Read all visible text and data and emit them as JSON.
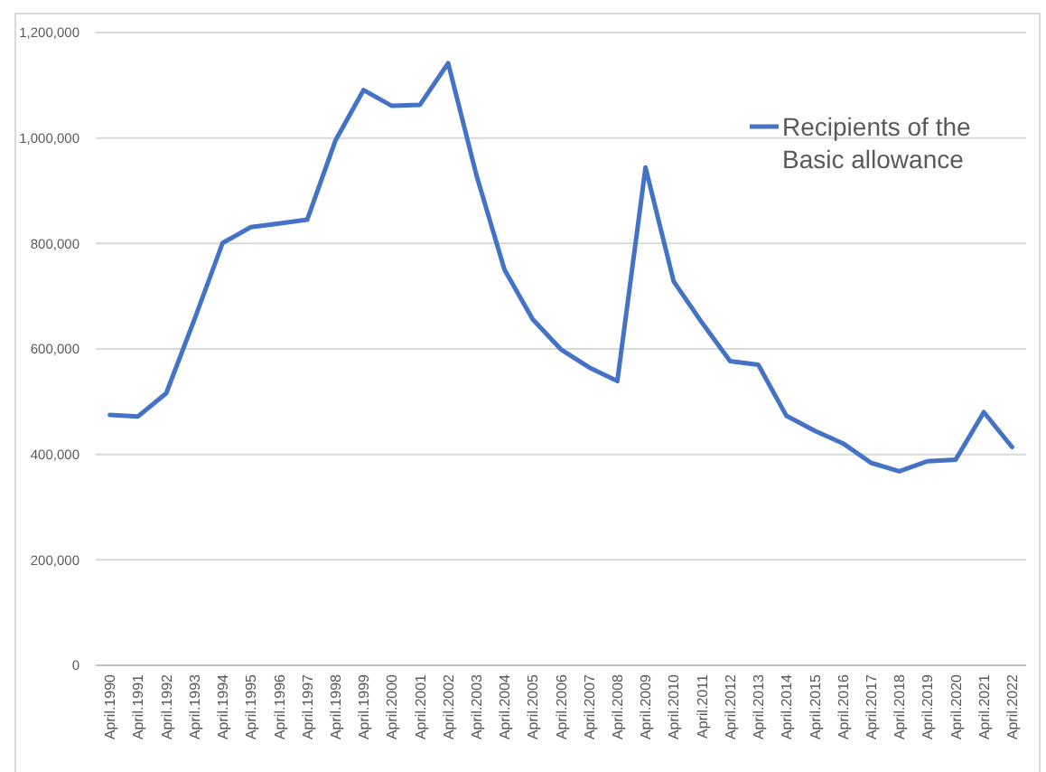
{
  "chart_data": {
    "type": "line",
    "categories": [
      "April.1990",
      "April.1991",
      "April.1992",
      "April.1993",
      "April.1994",
      "April.1995",
      "April.1996",
      "April.1997",
      "April.1998",
      "April.1999",
      "April.2000",
      "April.2001",
      "April.2002",
      "April.2003",
      "April.2004",
      "April.2005",
      "April.2006",
      "April.2007",
      "April.2008",
      "April.2009",
      "April.2010",
      "April.2011",
      "April.2012",
      "April.2013",
      "April.2014",
      "April.2015",
      "April.2016",
      "April.2017",
      "April.2018",
      "April.2019",
      "April.2020",
      "April.2021",
      "April.2022"
    ],
    "series": [
      {
        "name": "Recipients of the Basic allowance",
        "color": "#4472c4",
        "values": [
          475000,
          472000,
          516000,
          656000,
          801000,
          831000,
          838000,
          845000,
          995000,
          1091000,
          1061000,
          1063000,
          1142000,
          930000,
          750000,
          656000,
          599000,
          565000,
          539000,
          944000,
          728000,
          650000,
          577000,
          570000,
          473000,
          445000,
          421000,
          384000,
          368000,
          387000,
          390000,
          480000,
          414000
        ]
      }
    ],
    "ylim": [
      0,
      1200000
    ],
    "yticks": [
      {
        "value": 0,
        "label": "0"
      },
      {
        "value": 200000,
        "label": "200,000"
      },
      {
        "value": 400000,
        "label": "400,000"
      },
      {
        "value": 600000,
        "label": "600,000"
      },
      {
        "value": 800000,
        "label": "800,000"
      },
      {
        "value": 1000000,
        "label": "1,000,000"
      },
      {
        "value": 1200000,
        "label": "1,200,000"
      }
    ],
    "grid": "y",
    "legend": "top right",
    "marker": "none",
    "line_style": "solid"
  }
}
